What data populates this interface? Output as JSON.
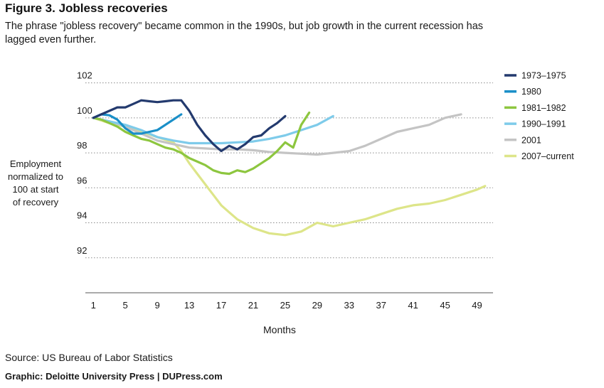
{
  "figure": {
    "title": "Figure 3. Jobless recoveries",
    "subtitle": "The phrase \"jobless recovery\" became common in the 1990s, but job growth in the current recession has lagged even further.",
    "source": "Source: US Bureau of Labor Statistics",
    "credit": "Graphic: Deloitte University Press  |  DUPress.com"
  },
  "chart_data": {
    "type": "line",
    "xlabel": "Months",
    "ylabel_lines": [
      "Employment",
      "normalized to",
      "100 at start",
      "of recovery"
    ],
    "xlim": [
      0,
      51
    ],
    "ylim": [
      90,
      103
    ],
    "x_ticks": [
      1,
      5,
      9,
      13,
      17,
      21,
      25,
      29,
      33,
      37,
      41,
      45,
      49
    ],
    "y_ticks": [
      92,
      94,
      96,
      98,
      100,
      102
    ],
    "grid": "horizontal dotted",
    "legend_position": "right",
    "series": [
      {
        "name": "1973–1975",
        "color": "#233a6e",
        "x": [
          1,
          2,
          3,
          4,
          5,
          6,
          7,
          8,
          9,
          10,
          11,
          12,
          13,
          14,
          15,
          16,
          17,
          18,
          19,
          20,
          21,
          22,
          23,
          24,
          25
        ],
        "values": [
          100.0,
          100.2,
          100.4,
          100.6,
          100.6,
          100.8,
          101.0,
          100.95,
          100.9,
          100.95,
          101.0,
          101.0,
          100.4,
          99.6,
          99.0,
          98.5,
          98.1,
          98.4,
          98.2,
          98.5,
          98.9,
          99.0,
          99.4,
          99.7,
          100.1
        ]
      },
      {
        "name": "1980",
        "color": "#1a8fc8",
        "x": [
          1,
          2,
          3,
          4,
          5,
          6,
          7,
          8,
          9,
          10,
          11,
          12
        ],
        "values": [
          100.0,
          100.2,
          100.15,
          99.9,
          99.4,
          99.1,
          99.1,
          99.2,
          99.3,
          99.6,
          99.9,
          100.2
        ]
      },
      {
        "name": "1981–1982",
        "color": "#8dc63f",
        "x": [
          1,
          2,
          3,
          4,
          5,
          6,
          7,
          8,
          9,
          10,
          11,
          12,
          13,
          14,
          15,
          16,
          17,
          18,
          19,
          20,
          21,
          22,
          23,
          24,
          25,
          26,
          27,
          28
        ],
        "values": [
          100.0,
          99.9,
          99.7,
          99.5,
          99.2,
          99.0,
          98.8,
          98.7,
          98.5,
          98.3,
          98.2,
          98.0,
          97.7,
          97.5,
          97.3,
          97.0,
          96.85,
          96.8,
          97.0,
          96.9,
          97.1,
          97.4,
          97.7,
          98.1,
          98.6,
          98.3,
          99.6,
          100.3
        ]
      },
      {
        "name": "1990–1991",
        "color": "#7ecbea",
        "x": [
          1,
          3,
          5,
          7,
          9,
          11,
          13,
          15,
          17,
          19,
          21,
          23,
          25,
          27,
          29,
          31
        ],
        "values": [
          100.0,
          99.8,
          99.6,
          99.3,
          98.9,
          98.7,
          98.55,
          98.55,
          98.55,
          98.6,
          98.65,
          98.8,
          99.0,
          99.3,
          99.6,
          100.1
        ]
      },
      {
        "name": "2001",
        "color": "#c4c4c4",
        "x": [
          1,
          3,
          5,
          7,
          9,
          11,
          13,
          15,
          17,
          19,
          21,
          23,
          25,
          27,
          29,
          31,
          33,
          35,
          37,
          39,
          41,
          43,
          45,
          47
        ],
        "values": [
          100.0,
          99.8,
          99.5,
          99.1,
          98.7,
          98.5,
          98.3,
          98.25,
          98.2,
          98.2,
          98.15,
          98.05,
          98.0,
          97.95,
          97.9,
          98.0,
          98.1,
          98.4,
          98.8,
          99.2,
          99.4,
          99.6,
          100.0,
          100.2
        ]
      },
      {
        "name": "2007–current",
        "color": "#dde589",
        "x": [
          1,
          3,
          5,
          7,
          9,
          11,
          12,
          13,
          14,
          15,
          16,
          17,
          18,
          19,
          21,
          23,
          25,
          27,
          29,
          31,
          33,
          35,
          37,
          39,
          41,
          43,
          45,
          47,
          49,
          50
        ],
        "values": [
          100.0,
          99.7,
          99.5,
          99.2,
          98.9,
          98.6,
          98.1,
          97.4,
          96.8,
          96.2,
          95.6,
          95.0,
          94.6,
          94.2,
          93.7,
          93.4,
          93.3,
          93.5,
          94.0,
          93.8,
          94.0,
          94.2,
          94.5,
          94.8,
          95.0,
          95.1,
          95.3,
          95.6,
          95.9,
          96.1
        ]
      }
    ]
  }
}
